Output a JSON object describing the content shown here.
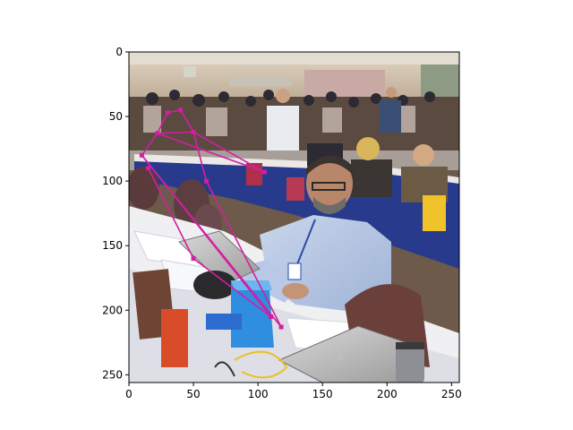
{
  "figure": {
    "x_axis": {
      "range": [
        0,
        256
      ],
      "ticks": [
        {
          "value": 0,
          "label": "0"
        },
        {
          "value": 50,
          "label": "50"
        },
        {
          "value": 100,
          "label": "100"
        },
        {
          "value": 150,
          "label": "150"
        },
        {
          "value": 200,
          "label": "200"
        },
        {
          "value": 250,
          "label": "250"
        }
      ]
    },
    "y_axis": {
      "range": [
        0,
        256
      ],
      "inverted": true,
      "ticks": [
        {
          "value": 0,
          "label": "0"
        },
        {
          "value": 50,
          "label": "50"
        },
        {
          "value": 100,
          "label": "100"
        },
        {
          "value": 150,
          "label": "150"
        },
        {
          "value": 200,
          "label": "200"
        },
        {
          "value": 250,
          "label": "250"
        }
      ]
    },
    "overlay": {
      "line_color": "#d020a0",
      "keypoints": [
        {
          "x": 10,
          "y": 80
        },
        {
          "x": 22,
          "y": 63
        },
        {
          "x": 30,
          "y": 47
        },
        {
          "x": 40,
          "y": 45
        },
        {
          "x": 50,
          "y": 62
        },
        {
          "x": 60,
          "y": 100
        },
        {
          "x": 105,
          "y": 93
        },
        {
          "x": 110,
          "y": 205
        },
        {
          "x": 118,
          "y": 213
        },
        {
          "x": 50,
          "y": 160
        },
        {
          "x": 15,
          "y": 90
        }
      ],
      "edges": [
        [
          0,
          1
        ],
        [
          1,
          2
        ],
        [
          2,
          3
        ],
        [
          3,
          4
        ],
        [
          4,
          5
        ],
        [
          4,
          6
        ],
        [
          1,
          6
        ],
        [
          0,
          7
        ],
        [
          0,
          8
        ],
        [
          10,
          9
        ],
        [
          9,
          7
        ],
        [
          1,
          4
        ],
        [
          5,
          8
        ]
      ]
    }
  }
}
